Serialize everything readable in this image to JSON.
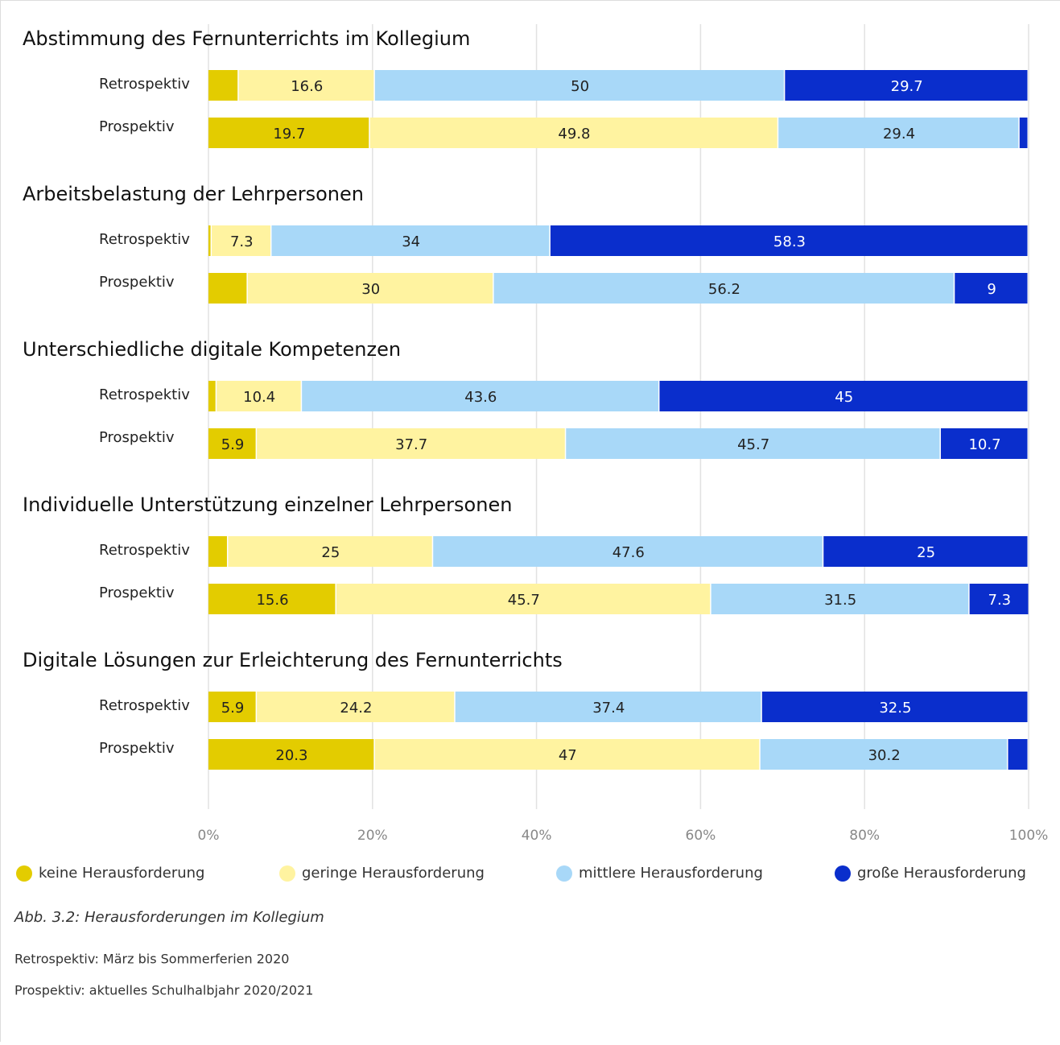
{
  "chart_data": {
    "type": "stacked-bar-horizontal",
    "groups": [
      "Abstimmung des Fernunterrichts im Kollegium",
      "Arbeitsbelastung der Lehrpersonen",
      "Unterschiedliche digitale Kompetenzen",
      "Individuelle Unterstützung einzelner Lehrpersonen",
      "Digitale Lösungen zur Erleichterung des Fernunterrichts"
    ],
    "categories": [
      "Retrospektiv",
      "Prospektiv",
      "Retrospektiv",
      "Prospektiv",
      "Retrospektiv",
      "Prospektiv",
      "Retrospektiv",
      "Prospektiv",
      "Retrospektiv",
      "Prospektiv"
    ],
    "series": [
      {
        "name": "keine Herausforderung",
        "color": "#e3cc00",
        "values": [
          3.7,
          19.7,
          0.4,
          4.8,
          1.0,
          5.9,
          2.4,
          15.6,
          5.9,
          20.3
        ]
      },
      {
        "name": "geringe Herausforderung",
        "color": "#fff3a0",
        "values": [
          16.6,
          49.8,
          7.3,
          30,
          10.4,
          37.7,
          25,
          45.7,
          24.2,
          47
        ]
      },
      {
        "name": "mittlere Herausforderung",
        "color": "#a8d8f8",
        "values": [
          50,
          29.4,
          34,
          56.2,
          43.6,
          45.7,
          47.6,
          31.5,
          37.4,
          30.2
        ]
      },
      {
        "name": "große Herausforderung",
        "color": "#0a2ecc",
        "values": [
          29.7,
          1.1,
          58.3,
          9,
          45,
          10.7,
          25,
          7.3,
          32.5,
          2.5
        ]
      }
    ],
    "xlim": [
      0,
      100
    ],
    "xticks": [
      {
        "value": 0,
        "label": "0%"
      },
      {
        "value": 20,
        "label": "20%"
      },
      {
        "value": 40,
        "label": "40%"
      },
      {
        "value": 60,
        "label": "60%"
      },
      {
        "value": 80,
        "label": "80%"
      },
      {
        "value": 100,
        "label": "100%"
      }
    ],
    "grid": true,
    "caption": "Abb. 3.2: Herausforderungen im Kollegium",
    "notes": [
      "Retrospektiv: März bis Sommerferien 2020",
      "Prospektiv: aktuelles Schulhalbjahr 2020/2021"
    ]
  }
}
